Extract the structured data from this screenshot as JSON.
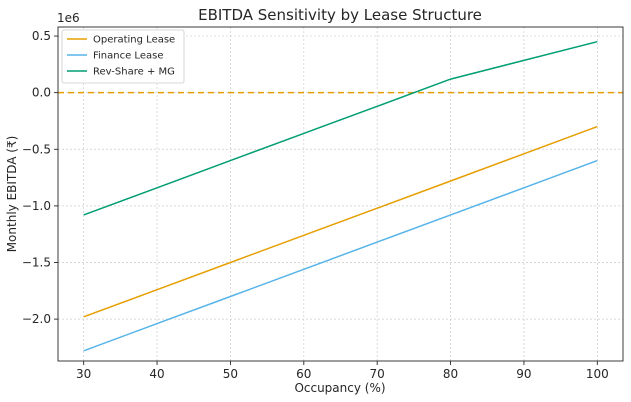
{
  "chart_data": {
    "type": "line",
    "title": "EBITDA Sensitivity by Lease Structure",
    "xlabel": "Occupancy (%)",
    "ylabel": "Monthly EBITDA (₹)",
    "y_offset_label": "1e6",
    "x_ticks": [
      30,
      40,
      50,
      60,
      70,
      80,
      90,
      100
    ],
    "y_ticks": [
      0.5,
      0.0,
      -0.5,
      -1.0,
      -1.5,
      -2.0
    ],
    "y_tick_labels": [
      "0.5",
      "0.0",
      "−0.5",
      "−1.0",
      "−1.5",
      "−2.0"
    ],
    "xlim": [
      26.5,
      103.5
    ],
    "ylim": [
      -2.37,
      0.58
    ],
    "grid": true,
    "legend_position": "top-left",
    "x": [
      30,
      40,
      50,
      60,
      70,
      80,
      90,
      100
    ],
    "series": [
      {
        "name": "Operating Lease",
        "color": "#E69F00",
        "values": [
          -1.98,
          -1.74,
          -1.5,
          -1.26,
          -1.02,
          -0.78,
          -0.54,
          -0.3
        ]
      },
      {
        "name": "Finance Lease",
        "color": "#56B4E9",
        "values": [
          -2.28,
          -2.04,
          -1.8,
          -1.56,
          -1.32,
          -1.08,
          -0.84,
          -0.6
        ]
      },
      {
        "name": "Rev-Share + MG",
        "color": "#009E73",
        "values": [
          -1.08,
          -0.84,
          -0.6,
          -0.36,
          -0.12,
          0.12,
          0.285,
          0.45
        ]
      }
    ],
    "reference_line": {
      "y": 0.0,
      "color": "#E69F00",
      "style": "dashed"
    }
  }
}
